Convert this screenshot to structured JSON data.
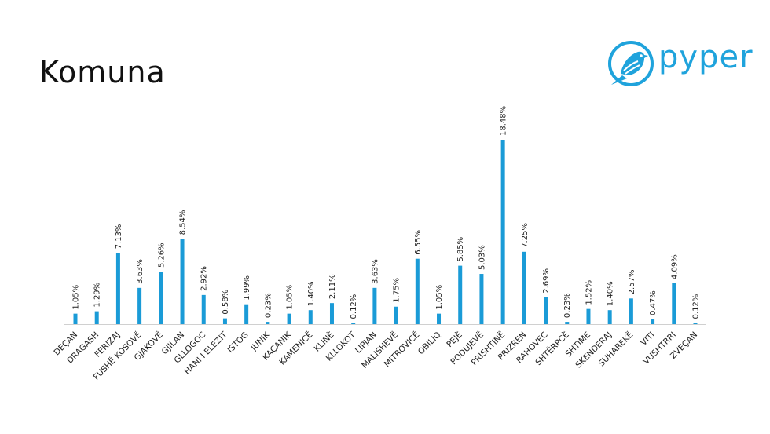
{
  "page": {
    "title": "Komuna"
  },
  "logo": {
    "text": "pyper",
    "color": "#1fa3dc",
    "icon": "bird-icon"
  },
  "chart_data": {
    "type": "bar",
    "title": "Komuna",
    "categories": [
      "DEÇAN",
      "DRAGASH",
      "FERIZAJ",
      "FUSHË KOSOVË",
      "GJAKOVË",
      "GJILAN",
      "GLLOGOC",
      "HANI I ELEZIT",
      "ISTOG",
      "JUNIK",
      "KAÇANIK",
      "KAMENICË",
      "KLINË",
      "KLLOKOT",
      "LIPJAN",
      "MALISHEVË",
      "MITROVICË",
      "OBILIQ",
      "PEJË",
      "PODUJEVË",
      "PRISHTINË",
      "PRIZREN",
      "RAHOVEC",
      "SHTËRPCË",
      "SHTIME",
      "SKENDERAJ",
      "SUHAREKË",
      "VITI",
      "VUSHTRRI",
      "ZVEÇAN"
    ],
    "values": [
      1.05,
      1.29,
      7.13,
      3.63,
      5.26,
      8.54,
      2.92,
      0.58,
      1.99,
      0.23,
      1.05,
      1.4,
      2.11,
      0.12,
      3.63,
      1.75,
      6.55,
      1.05,
      5.85,
      5.03,
      18.48,
      7.25,
      2.69,
      0.23,
      1.52,
      1.4,
      2.57,
      0.47,
      4.09,
      0.12
    ],
    "data_labels": [
      "1.05%",
      "1.29%",
      "7.13%",
      "3.63%",
      "5.26%",
      "8.54%",
      "2.92%",
      "0.58%",
      "1.99%",
      "0.23%",
      "1.05%",
      "1.40%",
      "2.11%",
      "0.12%",
      "3.63%",
      "1.75%",
      "6.55%",
      "1.05%",
      "5.85%",
      "5.03%",
      "18.48%",
      "7.25%",
      "2.69%",
      "0.23%",
      "1.52%",
      "1.40%",
      "2.57%",
      "0.47%",
      "4.09%",
      "0.12%"
    ],
    "xlabel": "",
    "ylabel": "",
    "ylim": [
      0,
      18.48
    ],
    "grid": false,
    "legend": "none",
    "bar_color": "#1a9bd7",
    "axis_color": "#d0d0d0"
  }
}
